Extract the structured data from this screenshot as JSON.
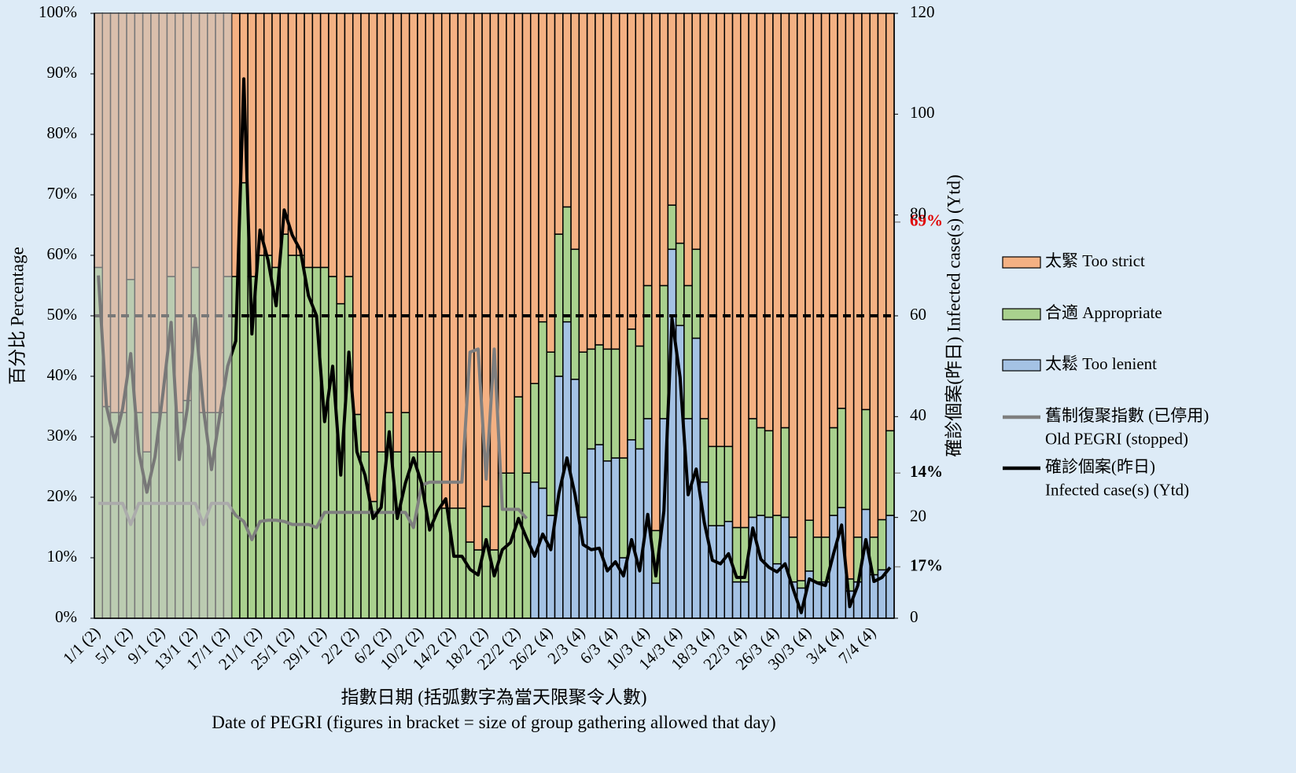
{
  "chart_data": {
    "type": "stacked-bar-line",
    "x_label": "指數日期 (括弧數字為當天限聚令人數)\nDate of PEGRI (figures in bracket = size of group gathering allowed that day)",
    "y_label": "百分比 Percentage",
    "y2_label": "確診個案(昨日) Infected case(s) (Ytd)",
    "categories": [
      "1/1 (2)",
      null,
      null,
      null,
      "5/1 (2)",
      null,
      null,
      null,
      "9/1 (2)",
      null,
      null,
      null,
      "13/1 (2)",
      null,
      null,
      null,
      "17/1 (2)",
      null,
      null,
      null,
      "21/1 (2)",
      null,
      null,
      null,
      "25/1 (2)",
      null,
      null,
      null,
      "29/1 (2)",
      null,
      null,
      null,
      "2/2 (2)",
      null,
      null,
      null,
      "6/2 (2)",
      null,
      null,
      null,
      "10/2 (2)",
      null,
      null,
      null,
      "14/2 (2)",
      null,
      null,
      null,
      "18/2 (2)",
      null,
      null,
      null,
      "22/2 (2)",
      null,
      null,
      null,
      "26/2 (4)",
      null,
      null,
      null,
      "2/3 (4)",
      null,
      null,
      null,
      "6/3 (4)",
      null,
      null,
      null,
      "10/3 (4)",
      null,
      null,
      null,
      "14/3 (4)",
      null,
      null,
      null,
      "18/3 (4)",
      null,
      null,
      null,
      "22/3 (4)",
      null,
      null,
      null,
      "26/3 (4)",
      null,
      null,
      null,
      "30/3 (4)",
      null,
      null,
      null,
      "3/4 (4)",
      null,
      null,
      null,
      "7/4 (4)",
      null,
      null
    ],
    "series": [
      {
        "name": "太鬆 Too lenient",
        "color": "#a4c2e4",
        "kind": "bar",
        "end_label": "17%",
        "values": [
          0,
          0,
          0,
          0,
          0,
          0,
          0,
          0,
          0,
          0,
          0,
          0,
          0,
          0,
          0,
          0,
          0,
          0,
          0,
          0,
          0,
          0,
          0,
          0,
          0,
          0,
          0,
          0,
          0,
          0,
          0,
          0,
          0,
          0,
          0,
          0,
          0,
          0,
          0,
          0,
          0,
          0,
          0,
          0,
          0,
          0,
          0,
          0,
          0,
          0,
          0,
          0,
          0,
          0,
          22.5,
          21.5,
          17,
          40,
          49,
          39.5,
          16.7,
          28,
          28.7,
          26,
          26.5,
          10,
          29.5,
          28,
          33,
          5.8,
          33,
          61,
          48.4,
          33,
          46.3,
          22.5,
          15.3,
          15.3,
          16,
          6,
          6,
          16.7,
          17,
          16.7,
          9,
          16.7,
          6,
          5,
          7.8,
          6,
          6,
          17,
          18.3,
          4.5,
          6,
          18,
          7.2,
          8,
          17
        ]
      },
      {
        "name": "合適 Appropriate",
        "color": "#a9d18e",
        "kind": "bar",
        "end_label": "14%",
        "values": [
          58,
          35,
          34,
          34,
          56,
          34,
          27.5,
          34,
          34,
          56.5,
          34,
          36,
          58,
          34,
          34,
          34,
          56.5,
          56.5,
          72,
          56.5,
          60,
          60,
          58,
          63.5,
          60,
          60,
          58,
          58,
          58,
          56.5,
          52,
          56.5,
          33.7,
          27.5,
          19.3,
          27.5,
          34,
          27.5,
          34,
          27.5,
          27.5,
          27.5,
          27.5,
          18.2,
          18.2,
          18.2,
          12.6,
          11.3,
          18.5,
          11.3,
          24,
          24,
          36.6,
          24,
          16.3,
          27.5,
          27,
          23.5,
          19,
          21.5,
          27.3,
          16.5,
          16.5,
          18.5,
          18,
          16.5,
          18.3,
          17,
          22,
          8.7,
          22,
          7.3,
          13.6,
          22,
          14.7,
          10.5,
          13.1,
          13.1,
          12.4,
          9,
          9,
          16.3,
          14.5,
          14.3,
          8,
          14.8,
          7.4,
          1.2,
          8.4,
          7.4,
          7.4,
          14.5,
          16.4,
          2,
          7.4,
          16.5,
          6.2,
          8.3,
          14
        ]
      },
      {
        "name": "太緊 Too strict",
        "color": "#f4b183",
        "kind": "bar",
        "end_label": "69%",
        "end_label_color": "#e00000",
        "values": [
          42,
          65,
          66,
          66,
          44,
          66,
          72.5,
          66,
          66,
          43.5,
          66,
          64,
          42,
          66,
          66,
          66,
          43.5,
          43.5,
          28,
          43.5,
          40,
          40,
          42,
          36.5,
          40,
          40,
          42,
          42,
          42,
          43.5,
          48,
          43.5,
          66.3,
          72.5,
          80.7,
          72.5,
          66,
          72.5,
          66,
          72.5,
          72.5,
          72.5,
          72.5,
          81.8,
          81.8,
          81.8,
          87.4,
          88.7,
          81.5,
          88.7,
          76,
          76,
          63.4,
          76,
          61.2,
          51,
          56,
          36.5,
          32,
          39,
          56,
          55.5,
          54.8,
          55.5,
          55.5,
          73.5,
          52.2,
          55,
          45,
          85.5,
          45,
          31.7,
          38,
          45,
          39,
          67,
          71.6,
          71.6,
          71.6,
          85,
          85,
          67,
          68.5,
          69,
          83,
          68.5,
          86.6,
          93.8,
          83.8,
          86.6,
          86.6,
          68.5,
          65.3,
          93.5,
          86.6,
          65.5,
          86.6,
          83.7,
          69
        ]
      },
      {
        "name": "舊制復聚指數 (已停用)\nOld PEGRI (stopped)",
        "color": "#7f7f7f",
        "kind": "line",
        "values": [
          19,
          19,
          19,
          19,
          15.5,
          19,
          19,
          19,
          19,
          19,
          19,
          19,
          19,
          15.5,
          19,
          19,
          19,
          17,
          16,
          13,
          16,
          16.2,
          16.2,
          16,
          15.5,
          15.5,
          15.5,
          15,
          17.5,
          17.5,
          17.5,
          17.5,
          17.5,
          17.5,
          17.5,
          17.5,
          17.5,
          17.5,
          17.5,
          15,
          22,
          22.5,
          22.5,
          22.5,
          22.5,
          22.5,
          44,
          44.5,
          23,
          44.5,
          18,
          18,
          18,
          16.5,
          null,
          null,
          null,
          null,
          null,
          null,
          null,
          null,
          null,
          null,
          null,
          null,
          null,
          null,
          null,
          null,
          null,
          null,
          null,
          null,
          null,
          null,
          null,
          null,
          null,
          null,
          null,
          null,
          null,
          null,
          null,
          null,
          null,
          null,
          null,
          null,
          null,
          null,
          null,
          null,
          null,
          null,
          null,
          null,
          null
        ]
      },
      {
        "name": "確診個案(昨日)\nInfected case(s) (Ytd)",
        "color": "#000000",
        "kind": "line",
        "axis": "y2",
        "values": [
          68,
          42,
          35,
          41.6,
          52.5,
          33,
          25,
          32,
          44.7,
          58.7,
          31.5,
          41.6,
          59.5,
          41.6,
          29.5,
          40,
          50,
          55,
          107,
          56.4,
          77,
          71,
          62,
          81,
          76,
          73,
          64,
          60,
          39,
          50,
          28.4,
          52.8,
          33,
          28.4,
          19.8,
          22,
          37,
          19.8,
          26.8,
          31.8,
          26.8,
          17.5,
          21.3,
          23.7,
          12.3,
          12.3,
          9.7,
          8.6,
          15.6,
          8.4,
          13.6,
          15,
          19.8,
          15.9,
          12.3,
          16.7,
          13.6,
          24.8,
          31.8,
          24.5,
          14.6,
          13.6,
          13.9,
          9.4,
          11.2,
          8.4,
          15.6,
          9.4,
          20.6,
          8.4,
          21.3,
          59.5,
          47.8,
          24.5,
          29.6,
          19,
          11.5,
          10.8,
          12.8,
          8.1,
          8.1,
          17.9,
          11.7,
          10.1,
          9.2,
          10.8,
          5.8,
          1.1,
          7.8,
          7,
          6.5,
          12.8,
          18.5,
          2.3,
          6.5,
          15.6,
          7.3,
          8.1,
          10.1
        ]
      }
    ],
    "ylim": [
      0,
      100
    ],
    "yticks": [
      {
        "value": 0,
        "label": "0%"
      },
      {
        "value": 10,
        "label": "10%"
      },
      {
        "value": 20,
        "label": "20%"
      },
      {
        "value": 30,
        "label": "30%"
      },
      {
        "value": 40,
        "label": "40%"
      },
      {
        "value": 50,
        "label": "50%"
      },
      {
        "value": 60,
        "label": "60%"
      },
      {
        "value": 70,
        "label": "70%"
      },
      {
        "value": 80,
        "label": "80%"
      },
      {
        "value": 90,
        "label": "90%"
      },
      {
        "value": 100,
        "label": "100%"
      }
    ],
    "y2lim": [
      0,
      120
    ],
    "y2ticks": [
      0,
      20,
      40,
      60,
      80,
      100,
      120
    ],
    "reference_line": 50,
    "legend": "right"
  }
}
